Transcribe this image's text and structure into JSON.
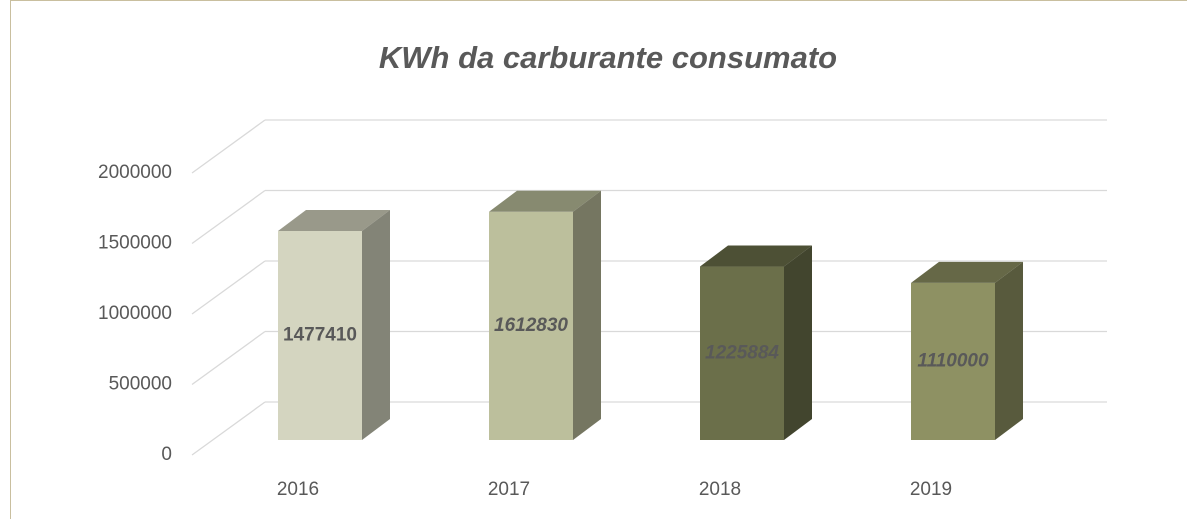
{
  "chart_data": {
    "type": "bar3d",
    "title": "KWh da carburante consumato",
    "categories": [
      "2016",
      "2017",
      "2018",
      "2019"
    ],
    "values": [
      1477410,
      1612830,
      1225884,
      1110000
    ],
    "colors": [
      "#d4d5c0",
      "#bcbf9c",
      "#6b6f4a",
      "#8e9163"
    ],
    "ylim": [
      0,
      2000000
    ],
    "yticks": [
      0,
      500000,
      1000000,
      1500000,
      2000000
    ],
    "grid": true
  }
}
